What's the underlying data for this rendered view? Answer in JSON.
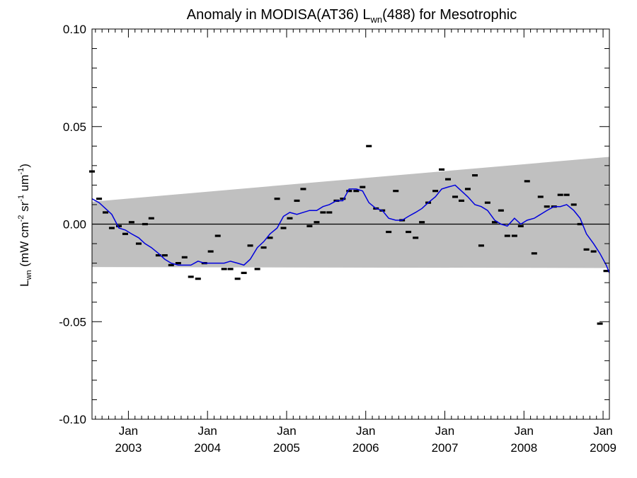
{
  "chart_data": {
    "type": "scatter",
    "title_main": "Anomaly in MODISA(AT36) L",
    "title_sub": "wn",
    "title_rest": "(488) for Mesotrophic",
    "ylabel_main": "L",
    "ylabel_sub": "wn",
    "ylabel_units": " (mW cm",
    "ylabel_units_sup1": "-2",
    "ylabel_units_mid": " sr",
    "ylabel_units_sup2": "-1",
    "ylabel_units_end": " um",
    "ylabel_units_sup3": "-1",
    "ylabel_units_close": ")",
    "xlim": [
      2002.54,
      2009.08
    ],
    "ylim": [
      -0.1,
      0.1
    ],
    "y_ticks": [
      {
        "value": 0.1,
        "label": "0.10"
      },
      {
        "value": 0.05,
        "label": "0.05"
      },
      {
        "value": 0.0,
        "label": "0.00"
      },
      {
        "value": -0.05,
        "label": "-0.05"
      },
      {
        "value": -0.1,
        "label": "-0.10"
      }
    ],
    "x_ticks": [
      {
        "value": 2003.0,
        "month": "Jan",
        "year": "2003"
      },
      {
        "value": 2004.0,
        "month": "Jan",
        "year": "2004"
      },
      {
        "value": 2005.0,
        "month": "Jan",
        "year": "2005"
      },
      {
        "value": 2006.0,
        "month": "Jan",
        "year": "2006"
      },
      {
        "value": 2007.0,
        "month": "Jan",
        "year": "2007"
      },
      {
        "value": 2008.0,
        "month": "Jan",
        "year": "2008"
      },
      {
        "value": 2009.0,
        "month": "Jan",
        "year": "2009"
      }
    ],
    "band": {
      "x": [
        2002.54,
        2009.08
      ],
      "upper": [
        0.0115,
        0.0345
      ],
      "lower": [
        -0.022,
        -0.0225
      ],
      "color": "#c0c0c0"
    },
    "zero_line": 0.0,
    "points": {
      "x": [
        2002.54,
        2002.63,
        2002.71,
        2002.79,
        2002.88,
        2002.96,
        2003.04,
        2003.13,
        2003.21,
        2003.29,
        2003.38,
        2003.46,
        2003.54,
        2003.63,
        2003.71,
        2003.79,
        2003.88,
        2003.96,
        2004.04,
        2004.13,
        2004.21,
        2004.29,
        2004.38,
        2004.46,
        2004.54,
        2004.63,
        2004.71,
        2004.79,
        2004.88,
        2004.96,
        2005.04,
        2005.13,
        2005.21,
        2005.29,
        2005.38,
        2005.46,
        2005.54,
        2005.63,
        2005.71,
        2005.79,
        2005.88,
        2005.96,
        2006.04,
        2006.13,
        2006.21,
        2006.29,
        2006.38,
        2006.46,
        2006.54,
        2006.63,
        2006.71,
        2006.79,
        2006.88,
        2006.96,
        2007.04,
        2007.13,
        2007.21,
        2007.29,
        2007.38,
        2007.46,
        2007.54,
        2007.63,
        2007.71,
        2007.79,
        2007.88,
        2007.96,
        2008.04,
        2008.13,
        2008.21,
        2008.29,
        2008.38,
        2008.46,
        2008.54,
        2008.63,
        2008.71,
        2008.79,
        2008.88,
        2008.96,
        2009.04
      ],
      "y": [
        0.027,
        0.013,
        0.006,
        -0.002,
        -0.001,
        -0.005,
        0.001,
        -0.01,
        0.0,
        0.003,
        -0.016,
        -0.016,
        -0.021,
        -0.02,
        -0.017,
        -0.027,
        -0.028,
        -0.02,
        -0.014,
        -0.006,
        -0.023,
        -0.023,
        -0.028,
        -0.025,
        -0.011,
        -0.023,
        -0.012,
        -0.007,
        0.013,
        -0.002,
        0.003,
        0.012,
        0.018,
        -0.001,
        0.001,
        0.006,
        0.006,
        0.012,
        0.013,
        0.017,
        0.017,
        0.019,
        0.04,
        0.008,
        0.007,
        -0.004,
        0.017,
        0.002,
        -0.004,
        -0.007,
        0.001,
        0.011,
        0.017,
        0.028,
        0.023,
        0.014,
        0.012,
        0.018,
        0.025,
        -0.011,
        0.011,
        0.001,
        0.007,
        -0.006,
        -0.006,
        -0.001,
        0.022,
        -0.015,
        0.014,
        0.009,
        0.009,
        0.015,
        0.015,
        0.01,
        0.0,
        -0.013,
        -0.014,
        -0.051,
        -0.024
      ],
      "color": "#000000"
    },
    "trend": {
      "x": [
        2002.54,
        2002.63,
        2002.71,
        2002.79,
        2002.88,
        2002.96,
        2003.04,
        2003.13,
        2003.21,
        2003.29,
        2003.38,
        2003.46,
        2003.54,
        2003.63,
        2003.71,
        2003.79,
        2003.88,
        2003.96,
        2004.04,
        2004.13,
        2004.21,
        2004.29,
        2004.38,
        2004.46,
        2004.54,
        2004.63,
        2004.71,
        2004.79,
        2004.88,
        2004.96,
        2005.04,
        2005.13,
        2005.21,
        2005.29,
        2005.38,
        2005.46,
        2005.54,
        2005.63,
        2005.71,
        2005.79,
        2005.88,
        2005.96,
        2006.04,
        2006.13,
        2006.21,
        2006.29,
        2006.38,
        2006.46,
        2006.54,
        2006.63,
        2006.71,
        2006.79,
        2006.88,
        2006.96,
        2007.04,
        2007.13,
        2007.21,
        2007.29,
        2007.38,
        2007.46,
        2007.54,
        2007.63,
        2007.71,
        2007.79,
        2007.88,
        2007.96,
        2008.04,
        2008.13,
        2008.21,
        2008.29,
        2008.38,
        2008.46,
        2008.54,
        2008.63,
        2008.71,
        2008.79,
        2008.88,
        2008.96,
        2009.04,
        2009.08
      ],
      "y": [
        0.013,
        0.011,
        0.008,
        0.005,
        -0.002,
        -0.003,
        -0.005,
        -0.007,
        -0.01,
        -0.012,
        -0.015,
        -0.018,
        -0.02,
        -0.021,
        -0.021,
        -0.021,
        -0.019,
        -0.02,
        -0.02,
        -0.02,
        -0.02,
        -0.019,
        -0.02,
        -0.021,
        -0.018,
        -0.012,
        -0.009,
        -0.005,
        -0.002,
        0.004,
        0.006,
        0.005,
        0.006,
        0.007,
        0.007,
        0.009,
        0.01,
        0.012,
        0.012,
        0.018,
        0.018,
        0.017,
        0.011,
        0.008,
        0.007,
        0.003,
        0.002,
        0.002,
        0.004,
        0.006,
        0.008,
        0.011,
        0.014,
        0.018,
        0.019,
        0.02,
        0.017,
        0.014,
        0.01,
        0.009,
        0.007,
        0.002,
        0.0,
        -0.001,
        0.003,
        0.0,
        0.002,
        0.003,
        0.005,
        0.007,
        0.009,
        0.009,
        0.01,
        0.007,
        0.003,
        -0.005,
        -0.01,
        -0.015,
        -0.021,
        -0.025
      ],
      "color": "#0000dd"
    }
  }
}
